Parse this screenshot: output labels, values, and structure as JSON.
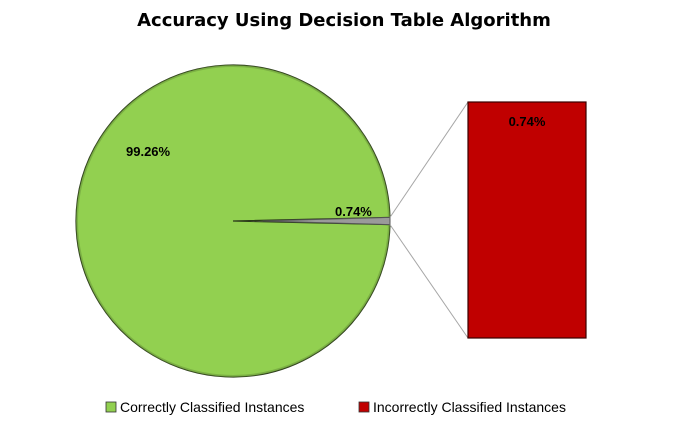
{
  "chart_data": {
    "type": "pie",
    "title": "Accuracy Using Decision Table Algorithm",
    "subtype": "pie-of-bar",
    "slices": [
      {
        "label": "Correctly Classified Instances",
        "value": 99.26,
        "display": "99.26%",
        "color": "#92d050"
      },
      {
        "label": "Incorrectly Classified Instances",
        "value": 0.74,
        "display": "0.74%",
        "color": "#c00000"
      }
    ],
    "secondary_bar": {
      "display": "0.74%",
      "color": "#c00000"
    },
    "legend_position": "bottom"
  }
}
